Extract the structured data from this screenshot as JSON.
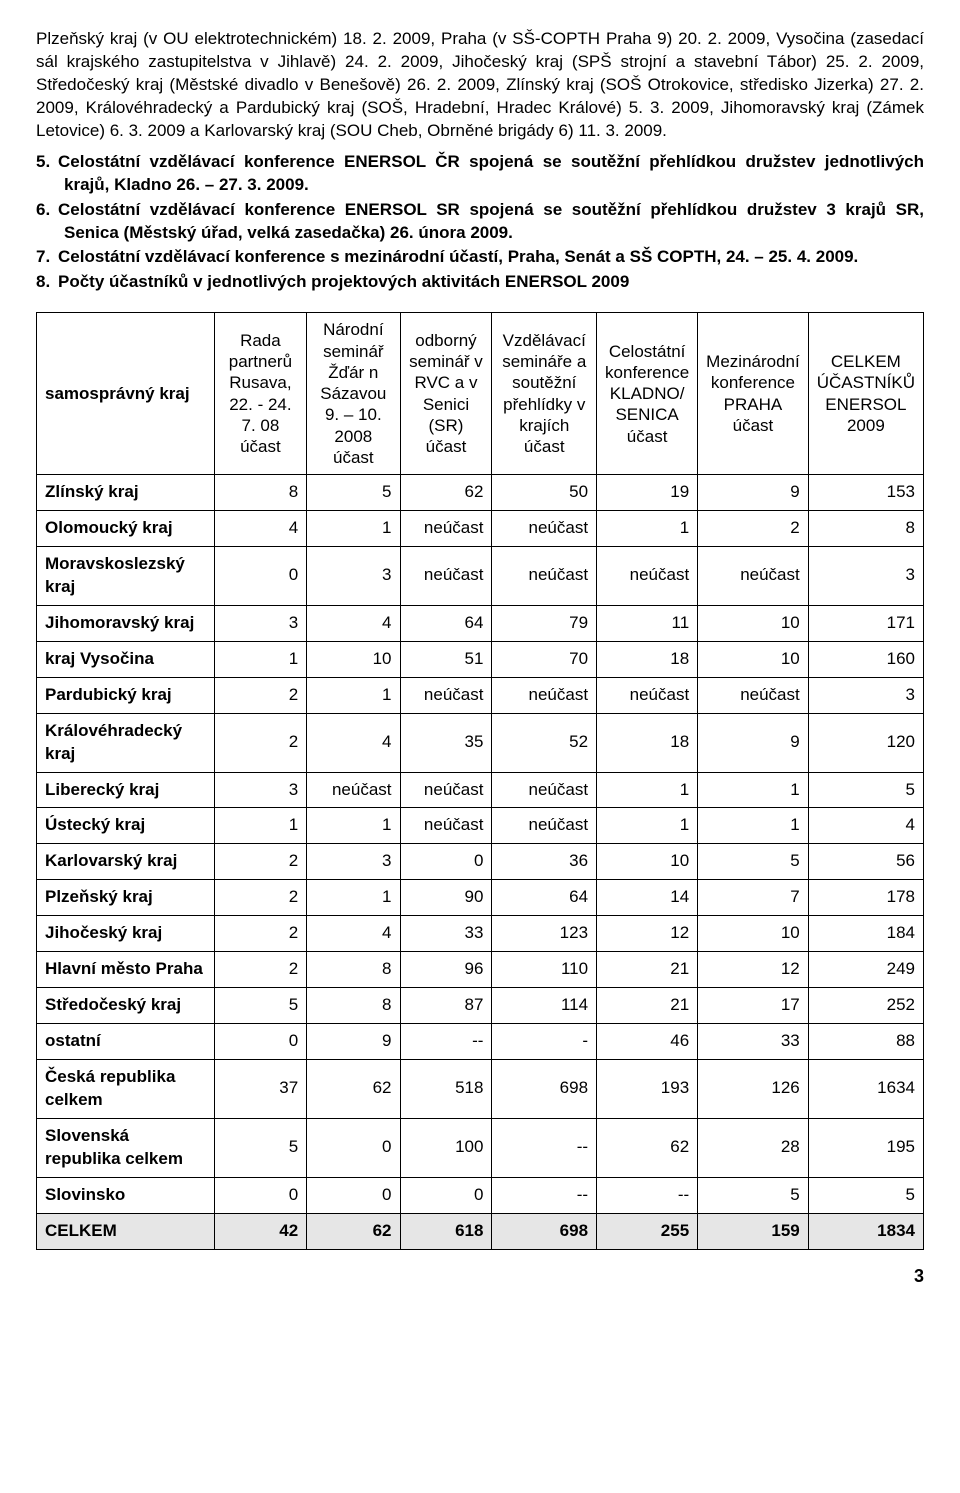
{
  "intro_part1": "Plzeňský kraj (v OU elektrotechnickém) 18. 2. 2009, Praha (v SŠ-COPTH Praha 9) 20. 2. 2009, Vysočina (zasedací sál krajského zastupitelstva v Jihlavě) 24. 2. 2009, Jihočeský kraj (SPŠ strojní a stavební Tábor) 25. 2. 2009, Středočeský kraj (Městské divadlo v Benešově) 26. 2. 2009, Zlínský kraj (SOŠ Otrokovice, středisko Jizerka) 27. 2. 2009, Královéhradecký a Pardubický kraj (SOŠ, Hradební, Hradec Králové) 5. 3. 2009, Jihomoravský kraj (Zámek Letovice) 6. 3. 2009 a Karlovarský kraj (SOU Cheb, Obrněné brigády 6) 11. 3. 2009.",
  "list": [
    {
      "n": "5.",
      "t": "Celostátní vzdělávací konference ENERSOL ČR spojená se soutěžní přehlídkou družstev jednotlivých krajů, Kladno 26. – 27. 3. 2009."
    },
    {
      "n": "6.",
      "t": "Celostátní vzdělávací konference ENERSOL SR spojená se soutěžní přehlídkou družstev 3 krajů SR, Senica (Městský úřad, velká zasedačka) 26. února 2009."
    },
    {
      "n": "7.",
      "t": "Celostátní vzdělávací konference s mezinárodní účastí, Praha, Senát a SŠ COPTH, 24. – 25. 4. 2009."
    },
    {
      "n": "8.",
      "t": "Počty účastníků v jednotlivých projektových aktivitách ENERSOL 2009"
    }
  ],
  "headers": [
    "samosprávný kraj",
    "Rada partnerů Rusava, 22. - 24. 7. 08 účast",
    "Národní seminář Žďár n Sázavou 9. – 10. 2008 účast",
    "odborný seminář v RVC a v Senici (SR) účast",
    "Vzdělávací semináře a soutěžní přehlídky v krajích účast",
    "Celostátní konference KLADNO/ SENICA účast",
    "Mezinárodní konference PRAHA účast",
    "CELKEM ÚČASTNÍKŮ ENERSOL 2009"
  ],
  "rows": [
    {
      "label": "Zlínský kraj",
      "v": [
        "8",
        "5",
        "62",
        "50",
        "19",
        "9",
        "153"
      ]
    },
    {
      "label": "Olomoucký kraj",
      "v": [
        "4",
        "1",
        "neúčast",
        "neúčast",
        "1",
        "2",
        "8"
      ]
    },
    {
      "label": "Moravskoslezský kraj",
      "v": [
        "0",
        "3",
        "neúčast",
        "neúčast",
        "neúčast",
        "neúčast",
        "3"
      ]
    },
    {
      "label": "Jihomoravský kraj",
      "v": [
        "3",
        "4",
        "64",
        "79",
        "11",
        "10",
        "171"
      ]
    },
    {
      "label": "kraj Vysočina",
      "v": [
        "1",
        "10",
        "51",
        "70",
        "18",
        "10",
        "160"
      ]
    },
    {
      "label": "Pardubický kraj",
      "v": [
        "2",
        "1",
        "neúčast",
        "neúčast",
        "neúčast",
        "neúčast",
        "3"
      ]
    },
    {
      "label": "Královéhradecký kraj",
      "v": [
        "2",
        "4",
        "35",
        "52",
        "18",
        "9",
        "120"
      ]
    },
    {
      "label": "Liberecký kraj",
      "v": [
        "3",
        "neúčast",
        "neúčast",
        "neúčast",
        "1",
        "1",
        "5"
      ]
    },
    {
      "label": "Ústecký kraj",
      "v": [
        "1",
        "1",
        "neúčast",
        "neúčast",
        "1",
        "1",
        "4"
      ]
    },
    {
      "label": "Karlovarský kraj",
      "v": [
        "2",
        "3",
        "0",
        "36",
        "10",
        "5",
        "56"
      ]
    },
    {
      "label": "Plzeňský kraj",
      "v": [
        "2",
        "1",
        "90",
        "64",
        "14",
        "7",
        "178"
      ]
    },
    {
      "label": "Jihočeský kraj",
      "v": [
        "2",
        "4",
        "33",
        "123",
        "12",
        "10",
        "184"
      ]
    },
    {
      "label": "Hlavní město Praha",
      "v": [
        "2",
        "8",
        "96",
        "110",
        "21",
        "12",
        "249"
      ]
    },
    {
      "label": "Středočeský kraj",
      "v": [
        "5",
        "8",
        "87",
        "114",
        "21",
        "17",
        "252"
      ]
    },
    {
      "label": "ostatní",
      "v": [
        "0",
        "9",
        "--",
        "-",
        "46",
        "33",
        "88"
      ]
    },
    {
      "label": "Česká republika celkem",
      "v": [
        "37",
        "62",
        "518",
        "698",
        "193",
        "126",
        "1634"
      ]
    },
    {
      "label": "Slovenská republika celkem",
      "v": [
        "5",
        "0",
        "100",
        "--",
        "62",
        "28",
        "195"
      ]
    },
    {
      "label": "Slovinsko",
      "v": [
        "0",
        "0",
        "0",
        "--",
        "--",
        "5",
        "5"
      ]
    }
  ],
  "total": {
    "label": "CELKEM",
    "v": [
      "42",
      "62",
      "618",
      "698",
      "255",
      "159",
      "1834"
    ]
  },
  "page_number": "3",
  "col_widths": [
    "21%",
    "11%",
    "11%",
    "11%",
    "12%",
    "11%",
    "11%",
    "12%"
  ]
}
